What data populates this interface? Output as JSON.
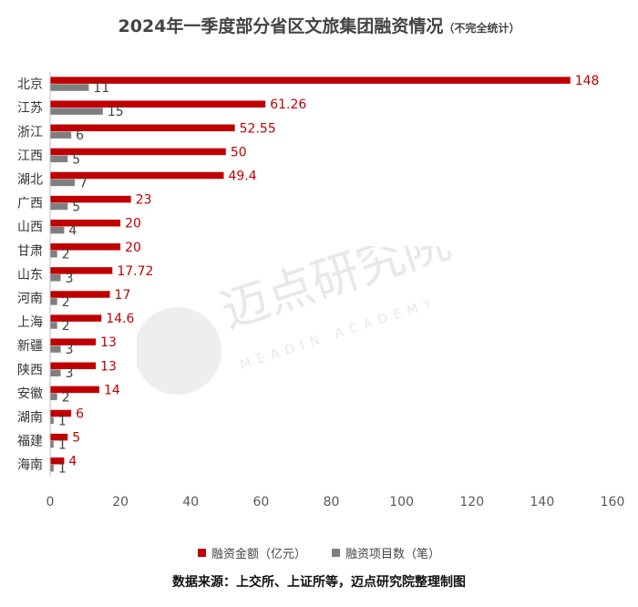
{
  "colors": {
    "funding": "#c00000",
    "projects": "#7f7f7f",
    "label_funding": "#c00000",
    "label_projects": "#404040",
    "axis_text": "#595959",
    "watermark": "#e6e6e6"
  },
  "header": {
    "title": "2024年一季度部分省区文旅集团融资情况",
    "subtitle": "（不完全统计）"
  },
  "footer": {
    "source": "数据来源：上交所、上证所等，迈点研究院整理制图"
  },
  "watermark": {
    "text": "迈点研究院",
    "subtext": "MEADIN ACADEMY"
  },
  "chart_data": {
    "type": "bar",
    "orientation": "horizontal",
    "categories": [
      "北京",
      "江苏",
      "浙江",
      "江西",
      "湖北",
      "广西",
      "山西",
      "甘肃",
      "山东",
      "河南",
      "上海",
      "新疆",
      "陕西",
      "安徽",
      "湖南",
      "福建",
      "海南"
    ],
    "series": [
      {
        "name": "融资金额（亿元）",
        "values": [
          148,
          61.26,
          52.55,
          50,
          49.4,
          23,
          20,
          20,
          17.72,
          17,
          14.6,
          13,
          13,
          14,
          6,
          5,
          4
        ],
        "labels": [
          "148",
          "61.26",
          "52.55",
          "50",
          "49.4",
          "23",
          "20",
          "20",
          "17.72",
          "17",
          "14.6",
          "13",
          "13",
          "14",
          "6",
          "5",
          "4"
        ]
      },
      {
        "name": "融资项目数（笔）",
        "values": [
          11,
          15,
          6,
          5,
          7,
          5,
          4,
          2,
          3,
          2,
          2,
          3,
          3,
          2,
          1,
          1,
          1
        ],
        "labels": [
          "11",
          "15",
          "6",
          "5",
          "7",
          "5",
          "4",
          "2",
          "3",
          "2",
          "2",
          "3",
          "3",
          "2",
          "1",
          "1",
          "1"
        ]
      }
    ],
    "xlim": [
      0,
      160
    ],
    "xticks": [
      "0",
      "20",
      "40",
      "60",
      "80",
      "100",
      "120",
      "140",
      "160"
    ],
    "xtick_values": [
      0,
      20,
      40,
      60,
      80,
      100,
      120,
      140,
      160
    ],
    "grid": false,
    "legend_position": "bottom"
  }
}
